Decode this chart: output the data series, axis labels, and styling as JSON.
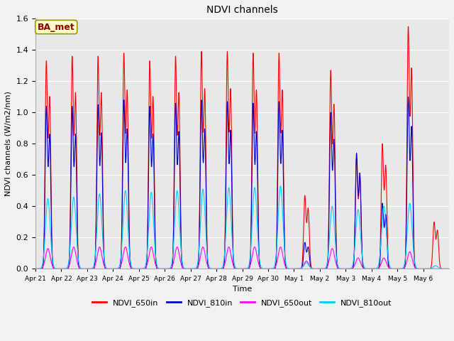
{
  "title": "NDVI channels",
  "ylabel": "NDVI channels (W/m2/nm)",
  "xlabel": "Time",
  "annotation": "BA_met",
  "ylim": [
    0,
    1.6
  ],
  "colors": {
    "NDVI_650in": "#ff0000",
    "NDVI_810in": "#0000cc",
    "NDVI_650out": "#ff00ff",
    "NDVI_810out": "#00ccff"
  },
  "legend_labels": [
    "NDVI_650in",
    "NDVI_810in",
    "NDVI_650out",
    "NDVI_810out"
  ],
  "xtick_labels": [
    "Apr 21",
    "Apr 22",
    "Apr 23",
    "Apr 24",
    "Apr 25",
    "Apr 26",
    "Apr 27",
    "Apr 28",
    "Apr 29",
    "Apr 30",
    "May 1",
    "May 2",
    "May 3",
    "May 4",
    "May 5",
    "May 6"
  ],
  "peak_650in": [
    1.33,
    1.36,
    1.36,
    1.38,
    1.33,
    1.36,
    1.39,
    1.39,
    1.38,
    1.38,
    0.47,
    1.27,
    0.71,
    0.8,
    1.55,
    0.3
  ],
  "peak_810in": [
    1.04,
    1.04,
    1.05,
    1.08,
    1.04,
    1.06,
    1.08,
    1.07,
    1.06,
    1.07,
    0.17,
    1.0,
    0.74,
    0.42,
    1.1,
    0.0
  ],
  "peak_650out": [
    0.13,
    0.14,
    0.14,
    0.14,
    0.14,
    0.14,
    0.14,
    0.14,
    0.14,
    0.14,
    0.05,
    0.13,
    0.07,
    0.07,
    0.11,
    0.0
  ],
  "peak_810out": [
    0.45,
    0.46,
    0.48,
    0.5,
    0.49,
    0.5,
    0.51,
    0.52,
    0.52,
    0.53,
    0.04,
    0.4,
    0.38,
    0.4,
    0.42,
    0.02
  ],
  "fig_bg": "#f2f2f2",
  "plot_bg": "#e8e8e8"
}
